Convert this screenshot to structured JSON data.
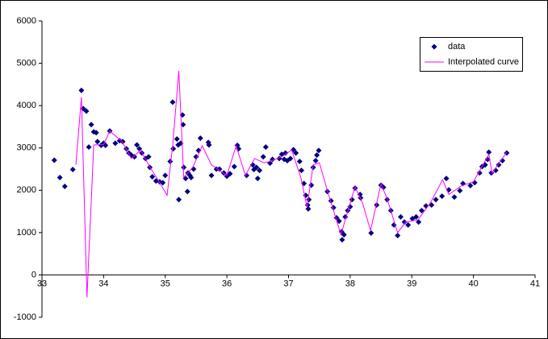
{
  "chart_data": {
    "type": "scatter",
    "xlim": [
      33,
      41
    ],
    "xticks": [
      33,
      34,
      35,
      36,
      37,
      38,
      39,
      40,
      41
    ],
    "ylim": [
      -1000,
      6000
    ],
    "yticks": [
      -1000,
      0,
      1000,
      2000,
      3000,
      4000,
      5000,
      6000
    ],
    "grid": false,
    "legend": "top-right",
    "series": [
      {
        "name": "data",
        "color": "#000080",
        "marker": "diamond",
        "x": [
          33.2,
          33.29,
          33.37,
          33.5,
          33.64,
          33.67,
          33.72,
          33.76,
          33.8,
          33.84,
          33.88,
          33.9,
          33.96,
          34.0,
          34.03,
          34.1,
          34.19,
          34.26,
          34.31,
          34.37,
          34.41,
          34.45,
          34.5,
          34.54,
          34.58,
          34.62,
          34.68,
          34.73,
          34.75,
          34.79,
          34.85,
          34.91,
          34.96,
          35.0,
          35.08,
          35.12,
          35.13,
          35.19,
          35.21,
          35.22,
          35.25,
          35.28,
          35.29,
          35.3,
          35.33,
          35.36,
          35.37,
          35.4,
          35.42,
          35.46,
          35.5,
          35.54,
          35.57,
          35.7,
          35.71,
          35.75,
          35.83,
          35.88,
          35.95,
          36.0,
          36.05,
          36.12,
          36.17,
          36.19,
          36.32,
          36.42,
          36.44,
          36.48,
          36.5,
          36.53,
          36.59,
          36.63,
          36.7,
          36.74,
          36.85,
          36.89,
          36.93,
          36.95,
          36.98,
          37.03,
          37.08,
          37.12,
          37.18,
          37.21,
          37.25,
          37.28,
          37.31,
          37.32,
          37.33,
          37.37,
          37.4,
          37.44,
          37.46,
          37.49,
          37.63,
          37.69,
          37.73,
          37.78,
          37.82,
          37.86,
          37.87,
          37.9,
          37.92,
          37.96,
          38.0,
          38.03,
          38.08,
          38.16,
          38.17,
          38.34,
          38.43,
          38.5,
          38.54,
          38.6,
          38.66,
          38.71,
          38.77,
          38.82,
          38.88,
          38.94,
          39.01,
          39.07,
          39.11,
          39.16,
          39.23,
          39.32,
          39.39,
          39.49,
          39.56,
          39.6,
          39.69,
          39.78,
          39.83,
          39.95,
          40.02,
          40.1,
          40.14,
          40.19,
          40.23,
          40.25,
          40.29,
          40.36,
          40.41,
          40.47,
          40.54
        ],
        "values": [
          2710,
          2300,
          2090,
          2490,
          4360,
          3930,
          3870,
          3020,
          3550,
          3380,
          3360,
          3150,
          3060,
          3110,
          3060,
          3400,
          3110,
          3170,
          3150,
          2980,
          2880,
          2830,
          2790,
          3070,
          2980,
          2880,
          2750,
          2790,
          2540,
          2320,
          2220,
          2200,
          2180,
          2350,
          2680,
          4080,
          2980,
          3210,
          3070,
          1780,
          3110,
          3780,
          3550,
          2540,
          2280,
          1970,
          2410,
          2350,
          2300,
          2500,
          2790,
          2940,
          3230,
          3130,
          3070,
          2350,
          2500,
          2500,
          2410,
          2330,
          2390,
          2560,
          3060,
          2980,
          2350,
          2600,
          2490,
          2540,
          2280,
          2470,
          2790,
          3020,
          2640,
          2730,
          2750,
          2850,
          2730,
          2880,
          2700,
          2750,
          2960,
          2880,
          2680,
          2470,
          2160,
          1880,
          1650,
          1560,
          1780,
          2120,
          2540,
          2700,
          2830,
          2940,
          1970,
          1750,
          1590,
          1350,
          1270,
          1020,
          830,
          950,
          1370,
          1520,
          1610,
          1780,
          2050,
          1900,
          1820,
          990,
          1650,
          2120,
          2070,
          1780,
          1520,
          1180,
          930,
          1370,
          1250,
          1180,
          1330,
          1370,
          1250,
          1520,
          1630,
          1650,
          1780,
          1860,
          2280,
          2010,
          1840,
          1990,
          2160,
          2110,
          2180,
          2410,
          2560,
          2600,
          2730,
          2900,
          2410,
          2470,
          2600,
          2700,
          2880
        ]
      },
      {
        "name": "Interpolated curve",
        "color": "#ff00ff",
        "marker": "line",
        "x": [
          33.55,
          33.64,
          33.73,
          33.84,
          34.0,
          34.1,
          34.3,
          34.45,
          34.6,
          34.75,
          34.9,
          35.03,
          35.12,
          35.22,
          35.3,
          35.45,
          35.6,
          35.75,
          36.0,
          36.15,
          36.3,
          36.45,
          36.6,
          36.7,
          36.9,
          37.05,
          37.2,
          37.3,
          37.4,
          37.5,
          37.65,
          37.85,
          38.0,
          38.08,
          38.2,
          38.33,
          38.5,
          38.6,
          38.77,
          38.9,
          39.1,
          39.3,
          39.5,
          39.6,
          39.8,
          40.0,
          40.25,
          40.3,
          40.54
        ],
        "values": [
          2600,
          4200,
          -530,
          3070,
          3080,
          3400,
          3150,
          2750,
          2950,
          2550,
          2200,
          1880,
          3050,
          4820,
          2300,
          2550,
          3050,
          2600,
          2350,
          3050,
          2350,
          2750,
          2650,
          2680,
          2800,
          2950,
          2300,
          1600,
          2600,
          2650,
          1900,
          950,
          1700,
          2080,
          1700,
          1050,
          2150,
          1800,
          1000,
          1250,
          1300,
          1700,
          2250,
          1900,
          2100,
          2200,
          2850,
          2400,
          2900
        ]
      }
    ]
  }
}
